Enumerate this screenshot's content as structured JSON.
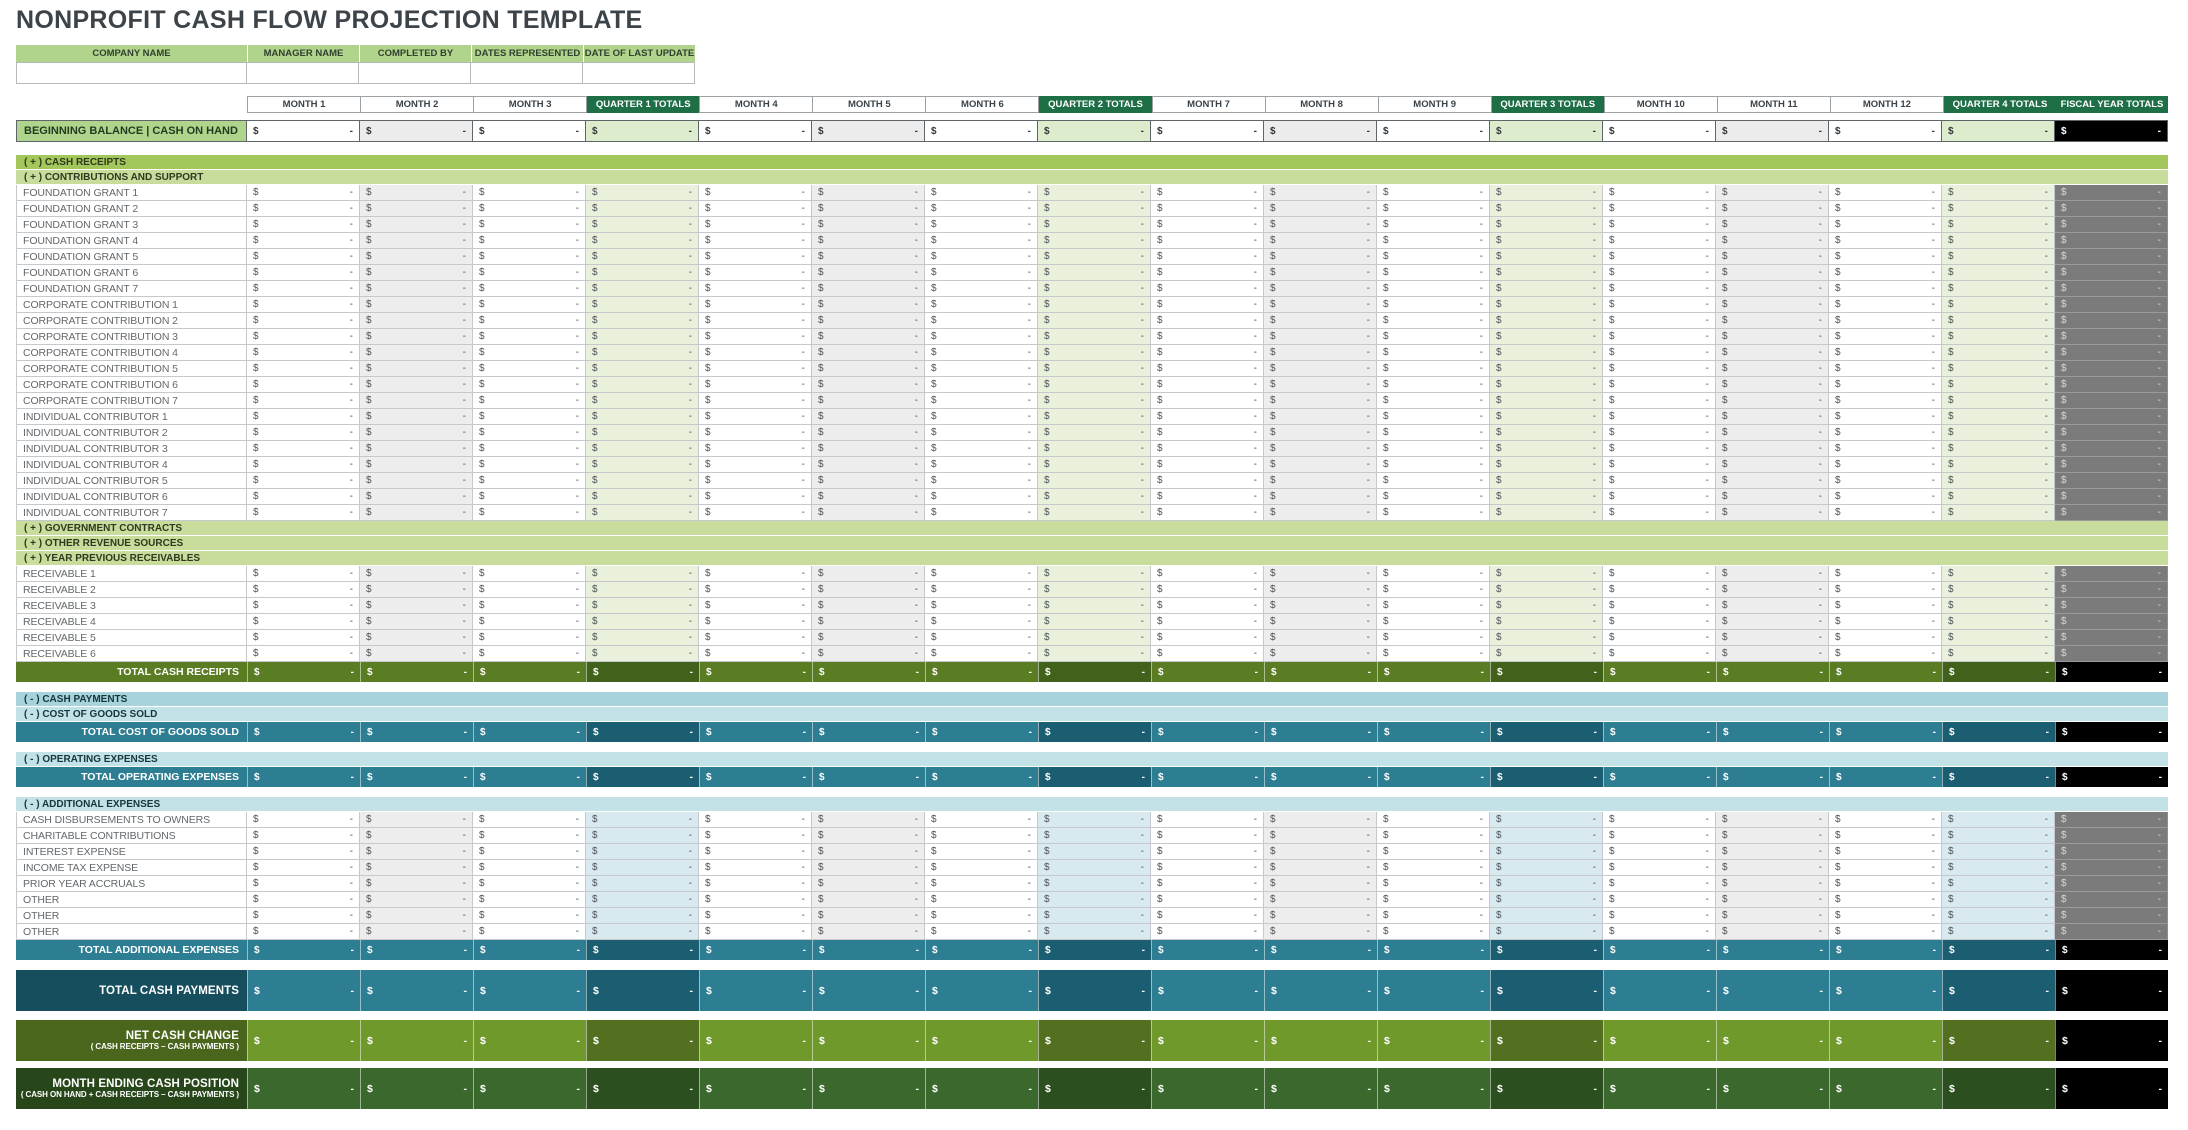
{
  "title": "NONPROFIT CASH FLOW PROJECTION TEMPLATE",
  "cell": {
    "currency": "$",
    "value": "-"
  },
  "info": {
    "headers": [
      "COMPANY NAME",
      "MANAGER NAME",
      "COMPLETED BY",
      "DATES REPRESENTED",
      "DATE OF LAST UPDATE"
    ],
    "values": [
      "",
      "",
      "",
      "",
      ""
    ]
  },
  "columns": [
    {
      "label": "MONTH 1",
      "type": "month"
    },
    {
      "label": "MONTH 2",
      "type": "month-alt"
    },
    {
      "label": "MONTH 3",
      "type": "month"
    },
    {
      "label": "QUARTER 1 TOTALS",
      "type": "quarter"
    },
    {
      "label": "MONTH 4",
      "type": "month"
    },
    {
      "label": "MONTH 5",
      "type": "month-alt"
    },
    {
      "label": "MONTH 6",
      "type": "month"
    },
    {
      "label": "QUARTER 2 TOTALS",
      "type": "quarter"
    },
    {
      "label": "MONTH 7",
      "type": "month"
    },
    {
      "label": "MONTH 8",
      "type": "month-alt"
    },
    {
      "label": "MONTH 9",
      "type": "month"
    },
    {
      "label": "QUARTER 3 TOTALS",
      "type": "quarter"
    },
    {
      "label": "MONTH 10",
      "type": "month"
    },
    {
      "label": "MONTH 11",
      "type": "month-alt"
    },
    {
      "label": "MONTH 12",
      "type": "month"
    },
    {
      "label": "QUARTER 4 TOTALS",
      "type": "quarter"
    },
    {
      "label": "FISCAL YEAR TOTALS",
      "type": "fiscal"
    }
  ],
  "rows": [
    {
      "type": "beginning",
      "label": "BEGINNING BALANCE | CASH ON HAND"
    },
    {
      "type": "gap",
      "h": 13
    },
    {
      "type": "band",
      "variant": "green-main",
      "label": "( + )  CASH RECEIPTS"
    },
    {
      "type": "band",
      "variant": "green-sub",
      "label": "( + )  CONTRIBUTIONS AND SUPPORT"
    },
    {
      "type": "data",
      "variant": "green",
      "label": "FOUNDATION GRANT 1"
    },
    {
      "type": "data",
      "variant": "green",
      "label": "FOUNDATION GRANT 2"
    },
    {
      "type": "data",
      "variant": "green",
      "label": "FOUNDATION GRANT 3"
    },
    {
      "type": "data",
      "variant": "green",
      "label": "FOUNDATION GRANT 4"
    },
    {
      "type": "data",
      "variant": "green",
      "label": "FOUNDATION GRANT 5"
    },
    {
      "type": "data",
      "variant": "green",
      "label": "FOUNDATION GRANT 6"
    },
    {
      "type": "data",
      "variant": "green",
      "label": "FOUNDATION GRANT 7"
    },
    {
      "type": "data",
      "variant": "green",
      "label": "CORPORATE CONTRIBUTION 1"
    },
    {
      "type": "data",
      "variant": "green",
      "label": "CORPORATE CONTRIBUTION 2"
    },
    {
      "type": "data",
      "variant": "green",
      "label": "CORPORATE CONTRIBUTION 3"
    },
    {
      "type": "data",
      "variant": "green",
      "label": "CORPORATE CONTRIBUTION 4"
    },
    {
      "type": "data",
      "variant": "green",
      "label": "CORPORATE CONTRIBUTION 5"
    },
    {
      "type": "data",
      "variant": "green",
      "label": "CORPORATE CONTRIBUTION 6"
    },
    {
      "type": "data",
      "variant": "green",
      "label": "CORPORATE CONTRIBUTION 7"
    },
    {
      "type": "data",
      "variant": "green",
      "label": "INDIVIDUAL CONTRIBUTOR 1"
    },
    {
      "type": "data",
      "variant": "green",
      "label": "INDIVIDUAL CONTRIBUTOR 2"
    },
    {
      "type": "data",
      "variant": "green",
      "label": "INDIVIDUAL CONTRIBUTOR 3"
    },
    {
      "type": "data",
      "variant": "green",
      "label": "INDIVIDUAL CONTRIBUTOR 4"
    },
    {
      "type": "data",
      "variant": "green",
      "label": "INDIVIDUAL CONTRIBUTOR 5"
    },
    {
      "type": "data",
      "variant": "green",
      "label": "INDIVIDUAL CONTRIBUTOR 6"
    },
    {
      "type": "data",
      "variant": "green",
      "label": "INDIVIDUAL CONTRIBUTOR 7"
    },
    {
      "type": "band",
      "variant": "green-sub",
      "label": "( + )  GOVERNMENT CONTRACTS"
    },
    {
      "type": "band",
      "variant": "green-sub",
      "label": "( + )  OTHER REVENUE SOURCES"
    },
    {
      "type": "band",
      "variant": "green-sub",
      "label": "( + )  YEAR PREVIOUS RECEIVABLES"
    },
    {
      "type": "data",
      "variant": "green",
      "label": "RECEIVABLE 1"
    },
    {
      "type": "data",
      "variant": "green",
      "label": "RECEIVABLE 2"
    },
    {
      "type": "data",
      "variant": "green",
      "label": "RECEIVABLE 3"
    },
    {
      "type": "data",
      "variant": "green",
      "label": "RECEIVABLE 4"
    },
    {
      "type": "data",
      "variant": "green",
      "label": "RECEIVABLE 5"
    },
    {
      "type": "data",
      "variant": "green",
      "label": "RECEIVABLE 6"
    },
    {
      "type": "total",
      "variant": "olive",
      "label": "TOTAL CASH RECEIPTS"
    },
    {
      "type": "gap",
      "h": 10
    },
    {
      "type": "band",
      "variant": "blue-main",
      "label": "( - )  CASH PAYMENTS"
    },
    {
      "type": "band",
      "variant": "blue-sub",
      "label": "( - )  COST OF GOODS SOLD"
    },
    {
      "type": "total",
      "variant": "teal",
      "label": "TOTAL COST OF GOODS SOLD"
    },
    {
      "type": "gap",
      "h": 10
    },
    {
      "type": "band",
      "variant": "blue-sub",
      "label": "( - )  OPERATING EXPENSES"
    },
    {
      "type": "total",
      "variant": "teal",
      "label": "TOTAL OPERATING EXPENSES"
    },
    {
      "type": "gap",
      "h": 10
    },
    {
      "type": "band",
      "variant": "blue-sub",
      "label": "( - )  ADDITIONAL EXPENSES"
    },
    {
      "type": "data",
      "variant": "blue",
      "label": "CASH DISBURSEMENTS TO OWNERS"
    },
    {
      "type": "data",
      "variant": "blue",
      "label": "CHARITABLE CONTRIBUTIONS"
    },
    {
      "type": "data",
      "variant": "blue",
      "label": "INTEREST EXPENSE"
    },
    {
      "type": "data",
      "variant": "blue",
      "label": "INCOME TAX EXPENSE"
    },
    {
      "type": "data",
      "variant": "blue",
      "label": "PRIOR YEAR ACCRUALS"
    },
    {
      "type": "data",
      "variant": "blue",
      "label": "OTHER"
    },
    {
      "type": "data",
      "variant": "blue",
      "label": "OTHER"
    },
    {
      "type": "data",
      "variant": "blue",
      "label": "OTHER"
    },
    {
      "type": "total",
      "variant": "teal",
      "label": "TOTAL ADDITIONAL EXPENSES"
    },
    {
      "type": "gap",
      "h": 10
    },
    {
      "type": "grand",
      "variant": "payments",
      "label": "TOTAL CASH PAYMENTS"
    },
    {
      "type": "gap",
      "h": 9
    },
    {
      "type": "grand",
      "variant": "net",
      "label": "NET CASH CHANGE",
      "sublabel": "( CASH RECEIPTS – CASH PAYMENTS )"
    },
    {
      "type": "gap",
      "h": 7
    },
    {
      "type": "grand",
      "variant": "ending",
      "label": "MONTH ENDING CASH POSITION",
      "sublabel": "( CASH ON HAND + CASH RECEIPTS – CASH PAYMENTS )"
    }
  ],
  "colors": {
    "quarter_header_green": "#1e6f46",
    "info_header_green": "#b1d48d",
    "section_band_green_main": "#a4c75c",
    "section_band_green_sub": "#c8dc9c",
    "section_band_blue_main": "#a6d3dc",
    "section_band_blue_sub": "#c2e2e8",
    "quarter_tint_green": "#e9f0db",
    "quarter_tint_blue": "#d8eaef",
    "fiscal_gray": "#7b7b7b",
    "fiscal_black": "#000000",
    "total_olive": "#5a7c22",
    "total_teal": "#2d7e92",
    "payments_label_teal": "#164e5e",
    "net_change_green": "#6f992b",
    "ending_position_green": "#3b682c"
  }
}
